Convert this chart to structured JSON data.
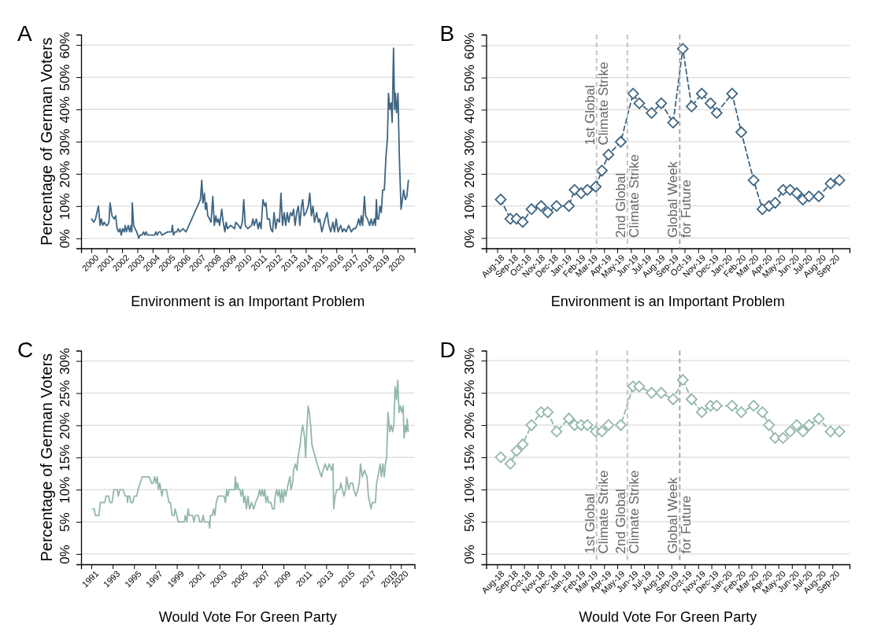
{
  "chart_data": [
    {
      "type": "line",
      "title": "A",
      "xlabel": "Environment is an Important Problem",
      "ylabel": "Percentage of German Voters",
      "grid": "y",
      "x": [
        2000.02,
        2000.15,
        2000.27,
        2000.46,
        2000.57,
        2000.65,
        2000.74,
        2000.84,
        2000.96,
        2001.04,
        2001.15,
        2001.22,
        2001.35,
        2001.49,
        2001.59,
        2001.68,
        2001.78,
        2001.87,
        2001.95,
        2002.04,
        2002.14,
        2002.21,
        2002.29,
        2002.41,
        2002.5,
        2002.59,
        2002.64,
        2002.67,
        2002.76,
        2002.86,
        2002.96,
        2003.1,
        2003.18,
        2003.3,
        2003.41,
        2003.49,
        2003.58,
        2003.66,
        2003.78,
        2004.13,
        2004.21,
        2004.3,
        2004.4,
        2004.5,
        2004.61,
        2004.98,
        2005.24,
        2005.29,
        2005.36,
        2005.46,
        2005.58,
        2005.67,
        2005.77,
        2005.98,
        2006.18,
        2007.12,
        2007.21,
        2007.28,
        2007.38,
        2007.45,
        2007.52,
        2007.6,
        2007.72,
        2007.81,
        2007.93,
        2008.03,
        2008.13,
        2008.2,
        2008.29,
        2008.37,
        2008.51,
        2008.61,
        2008.72,
        2008.8,
        2008.89,
        2009.09,
        2009.35,
        2009.43,
        2009.61,
        2009.74,
        2009.86,
        2009.95,
        2010.05,
        2010.21,
        2010.46,
        2010.55,
        2010.63,
        2010.77,
        2010.89,
        2010.98,
        2011.08,
        2011.2,
        2011.32,
        2011.4,
        2011.49,
        2011.63,
        2011.71,
        2011.83,
        2011.93,
        2012.04,
        2012.14,
        2012.28,
        2012.38,
        2012.48,
        2012.59,
        2012.69,
        2012.79,
        2012.89,
        2013.0,
        2013.1,
        2013.2,
        2013.3,
        2013.41,
        2013.51,
        2013.61,
        2013.72,
        2013.8,
        2013.89,
        2014.02,
        2014.16,
        2014.26,
        2014.37,
        2014.47,
        2014.57,
        2014.71,
        2014.83,
        2014.91,
        2015.05,
        2015.26,
        2015.39,
        2015.51,
        2015.63,
        2015.77,
        2015.87,
        2015.98,
        2016.11,
        2016.28,
        2016.39,
        2016.49,
        2016.63,
        2016.8,
        2016.97,
        2017.11,
        2017.23,
        2017.35,
        2017.45,
        2017.55,
        2017.62,
        2017.71,
        2017.83,
        2017.91,
        2018.03,
        2018.17,
        2018.27,
        2018.37,
        2018.48,
        2018.55,
        2018.61,
        2018.67,
        2018.76,
        2018.84,
        2018.93,
        2019.02,
        2019.13,
        2019.23,
        2019.33,
        2019.4,
        2019.49,
        2019.57,
        2019.64,
        2019.73,
        2019.8,
        2019.85,
        2019.93,
        2020.02,
        2020.11,
        2020.22,
        2020.31,
        2020.39,
        2020.5,
        2020.6,
        2020.7
      ],
      "series": [
        {
          "color": "#3e6582",
          "values": [
            6,
            5,
            6,
            10,
            4,
            6,
            4,
            5,
            4,
            4,
            5,
            11,
            7,
            6,
            7,
            3,
            2,
            3,
            1,
            3,
            2,
            4,
            2,
            4,
            2,
            4,
            2,
            11,
            4,
            3,
            2,
            0,
            1,
            1,
            2,
            1,
            2,
            1,
            1,
            1,
            2,
            1,
            2,
            2,
            1,
            2,
            2,
            4,
            1,
            2,
            2,
            3,
            2,
            3,
            2,
            12,
            18,
            11,
            14,
            9,
            11,
            7,
            6,
            5,
            13,
            4,
            7,
            5,
            6,
            4,
            9,
            5,
            2,
            5,
            3,
            4,
            3,
            5,
            4,
            3,
            5,
            12,
            4,
            3,
            4,
            6,
            4,
            6,
            3,
            5,
            3,
            12,
            10,
            11,
            6,
            6,
            3,
            2,
            8,
            3,
            6,
            5,
            14,
            4,
            8,
            4,
            8,
            5,
            8,
            7,
            9,
            4,
            8,
            10,
            4,
            10,
            12,
            7,
            8,
            10,
            14,
            7,
            10,
            5,
            8,
            5,
            6,
            2,
            6,
            8,
            4,
            2,
            5,
            2,
            6,
            2,
            4,
            2,
            3,
            2,
            4,
            2,
            3,
            3,
            4,
            6,
            4,
            7,
            4,
            13,
            7,
            6,
            4,
            6,
            4,
            6,
            4,
            12,
            6,
            6,
            10,
            8,
            15,
            15,
            25,
            31,
            45,
            40,
            42,
            36,
            59,
            40,
            45,
            39,
            45,
            25,
            9,
            12,
            15,
            12,
            13,
            18
          ]
        }
      ],
      "xlim": [
        1999.33,
        2021.1
      ],
      "xticks": [
        2000,
        2001,
        2002,
        2003,
        2004,
        2005,
        2006,
        2007,
        2008,
        2009,
        2010,
        2011,
        2012,
        2013,
        2014,
        2015,
        2016,
        2017,
        2018,
        2019,
        2020
      ],
      "ylim": [
        -3.1,
        63.2
      ],
      "yticks": [
        {
          "value": 0,
          "label": "0%"
        },
        {
          "value": 10,
          "label": "10%"
        },
        {
          "value": 20,
          "label": "20%"
        },
        {
          "value": 30,
          "label": "30%"
        },
        {
          "value": 40,
          "label": "40%"
        },
        {
          "value": 50,
          "label": "50%"
        },
        {
          "value": 60,
          "label": "60%"
        }
      ]
    },
    {
      "type": "line",
      "title": "B",
      "xlabel": "Environment is an Important Problem",
      "grid": "y",
      "marker": "diamond",
      "line_style": "dashed",
      "x": [
        "2018-08-09",
        "2018-08-31",
        "2018-09-14",
        "2018-09-28",
        "2018-10-18",
        "2018-11-09",
        "2018-11-24",
        "2018-12-14",
        "2019-01-11",
        "2019-01-24",
        "2019-02-08",
        "2019-02-22",
        "2019-03-13",
        "2019-03-27",
        "2019-04-11",
        "2019-05-09",
        "2019-06-06",
        "2019-06-20",
        "2019-07-18",
        "2019-08-09",
        "2019-09-05",
        "2019-09-27",
        "2019-10-17",
        "2019-11-09",
        "2019-11-29",
        "2019-12-13",
        "2020-01-17",
        "2020-02-07",
        "2020-03-06",
        "2020-03-26",
        "2020-04-10",
        "2020-04-24",
        "2020-05-12",
        "2020-05-28",
        "2020-06-12",
        "2020-06-26",
        "2020-07-10",
        "2020-08-01",
        "2020-08-28",
        "2020-09-17"
      ],
      "series": [
        {
          "color": "#3e6582",
          "values": [
            12,
            6,
            6,
            5,
            9,
            10,
            8,
            10,
            10,
            15,
            14,
            15,
            16,
            21,
            26,
            30,
            45,
            42,
            39,
            42,
            36,
            59,
            41,
            45,
            42,
            39,
            45,
            33,
            18,
            9,
            10,
            11,
            15,
            15,
            14,
            12,
            13,
            13,
            17,
            18
          ]
        }
      ],
      "xlim": [
        "2018-07-07",
        "2020-10-10"
      ],
      "xticks": [
        {
          "value": "2018-08-01",
          "label": "Aug-18"
        },
        {
          "value": "2018-09-01",
          "label": "Sep-18"
        },
        {
          "value": "2018-10-01",
          "label": "Oct-18"
        },
        {
          "value": "2018-11-01",
          "label": "Nov-18"
        },
        {
          "value": "2018-12-01",
          "label": "Dec-18"
        },
        {
          "value": "2019-01-01",
          "label": "Jan-19"
        },
        {
          "value": "2019-02-01",
          "label": "Feb-19"
        },
        {
          "value": "2019-03-01",
          "label": "Mar-19"
        },
        {
          "value": "2019-04-01",
          "label": "Apr-19"
        },
        {
          "value": "2019-05-01",
          "label": "May-19"
        },
        {
          "value": "2019-06-01",
          "label": "Jun-19"
        },
        {
          "value": "2019-07-01",
          "label": "Jul-19"
        },
        {
          "value": "2019-08-01",
          "label": "Aug-19"
        },
        {
          "value": "2019-09-01",
          "label": "Sep-19"
        },
        {
          "value": "2019-10-01",
          "label": "Oct-19"
        },
        {
          "value": "2019-11-01",
          "label": "Nov-19"
        },
        {
          "value": "2019-12-01",
          "label": "Dec-19"
        },
        {
          "value": "2020-01-01",
          "label": "Jan-20"
        },
        {
          "value": "2020-02-01",
          "label": "Feb-20"
        },
        {
          "value": "2020-03-01",
          "label": "Mar-20"
        },
        {
          "value": "2020-04-01",
          "label": "Apr-20"
        },
        {
          "value": "2020-05-01",
          "label": "May-20"
        },
        {
          "value": "2020-06-01",
          "label": "Jun-20"
        },
        {
          "value": "2020-07-01",
          "label": "Jul-20"
        },
        {
          "value": "2020-08-01",
          "label": "Aug-20"
        },
        {
          "value": "2020-09-01",
          "label": "Sep-20"
        }
      ],
      "ylim": [
        -3.2,
        63.4
      ],
      "yticks": [
        {
          "value": 0,
          "label": "0%"
        },
        {
          "value": 10,
          "label": "10%"
        },
        {
          "value": 20,
          "label": "20%"
        },
        {
          "value": 30,
          "label": "30%"
        },
        {
          "value": 40,
          "label": "40%"
        },
        {
          "value": 50,
          "label": "50%"
        },
        {
          "value": 60,
          "label": "60%"
        }
      ],
      "ref_lines": [
        {
          "axis": "x",
          "value": "2019-03-15",
          "label": "1st Global\nClimate Strike",
          "color": "#c4c4c4",
          "line_style": "dashed"
        },
        {
          "axis": "x",
          "value": "2019-05-24",
          "label": "2nd Global\nClimate Strike",
          "color": "#c4c4c4",
          "line_style": "dashed"
        },
        {
          "axis": "x",
          "value": "2019-09-20",
          "label": "Global Week\nfor Future",
          "color": "#a8a8a8",
          "line_style": "dashed"
        }
      ]
    },
    {
      "type": "line",
      "title": "C",
      "xlabel": "Would Vote For Green Party",
      "ylabel": "Percentage of German Voters",
      "grid": "y",
      "x": [
        1991.1,
        1991.27,
        1991.37,
        1991.71,
        1991.84,
        1992.25,
        1992.38,
        1992.62,
        1992.74,
        1992.94,
        1993.11,
        1993.43,
        1993.53,
        1993.68,
        1993.97,
        1994.17,
        1994.34,
        1994.39,
        1994.46,
        1994.59,
        1994.71,
        1994.88,
        1995.01,
        1995.25,
        1995.37,
        1995.57,
        1995.77,
        1996.43,
        1996.63,
        1996.8,
        1996.92,
        1997.07,
        1997.17,
        1997.29,
        1997.41,
        1997.61,
        1997.71,
        1998.03,
        1998.27,
        1998.4,
        1998.57,
        1998.76,
        1998.84,
        1999.01,
        1999.13,
        1999.7,
        1999.8,
        1999.94,
        2000.07,
        2000.16,
        2000.48,
        2000.61,
        2000.73,
        2001.02,
        2001.15,
        2001.34,
        2001.47,
        2001.59,
        2002.01,
        2002.08,
        2002.15,
        2002.33,
        2002.45,
        2002.57,
        2002.7,
        2002.87,
        2003.43,
        2003.56,
        2003.68,
        2003.8,
        2003.92,
        2004.42,
        2004.49,
        2004.59,
        2004.69,
        2004.81,
        2004.93,
        2005.03,
        2005.18,
        2005.28,
        2005.4,
        2005.52,
        2005.67,
        2005.82,
        2006.01,
        2006.21,
        2006.38,
        2006.63,
        2006.75,
        2006.87,
        2007.0,
        2007.12,
        2007.24,
        2007.36,
        2007.49,
        2007.61,
        2007.81,
        2007.98,
        2008.13,
        2008.22,
        2008.35,
        2008.47,
        2008.59,
        2008.72,
        2008.84,
        2008.96,
        2009.08,
        2009.21,
        2009.45,
        2009.6,
        2009.7,
        2009.85,
        2009.94,
        2010.12,
        2010.26,
        2010.36,
        2010.56,
        2010.68,
        2010.8,
        2010.98,
        2011.07,
        2011.17,
        2011.3,
        2011.42,
        2011.54,
        2011.66,
        2011.81,
        2011.98,
        2012.15,
        2012.35,
        2012.55,
        2012.7,
        2012.89,
        2013.09,
        2013.28,
        2013.51,
        2013.63,
        2013.7,
        2013.83,
        2014.0,
        2014.24,
        2014.37,
        2014.51,
        2014.66,
        2014.81,
        2014.91,
        2015.1,
        2015.27,
        2015.47,
        2015.59,
        2015.77,
        2015.96,
        2016.09,
        2016.21,
        2016.38,
        2016.58,
        2016.82,
        2016.95,
        2017.07,
        2017.19,
        2017.31,
        2017.61,
        2017.71,
        2017.85,
        2018.05,
        2018.17,
        2018.3,
        2018.44,
        2018.54,
        2018.66,
        2018.79,
        2018.94,
        2019.08,
        2019.21,
        2019.33,
        2019.45,
        2019.58,
        2019.7,
        2019.82,
        2019.94,
        2020.09,
        2020.21,
        2020.29,
        2020.41,
        2020.51,
        2020.58,
        2020.68
      ],
      "series": [
        {
          "color": "#93b7ae",
          "values": [
            7,
            7,
            6,
            6,
            8,
            8,
            9,
            9,
            8,
            8,
            10,
            10,
            9,
            10,
            10,
            9,
            9,
            8,
            9,
            9,
            8,
            8,
            9,
            9,
            10,
            11,
            12,
            12,
            11,
            11,
            12,
            11,
            12,
            10,
            11,
            9,
            10,
            10,
            8,
            8,
            6,
            6,
            7,
            6,
            5,
            5,
            6,
            5,
            7,
            6,
            6,
            5,
            6,
            6,
            5,
            5,
            6,
            5,
            5,
            4,
            6,
            6,
            7,
            6,
            8,
            9,
            9,
            8,
            10,
            9,
            10,
            10,
            12,
            10,
            11,
            10,
            10,
            9,
            10,
            8,
            9,
            7,
            9,
            7,
            8,
            7,
            8,
            9,
            10,
            9,
            10,
            9,
            10,
            8,
            9,
            8,
            8,
            7,
            7,
            9,
            10,
            9,
            10,
            8,
            10,
            8,
            10,
            9,
            11,
            12,
            10,
            11,
            13,
            14,
            13,
            15,
            17,
            19,
            20,
            18,
            15,
            19,
            23,
            22,
            20,
            17,
            16,
            15,
            14,
            13,
            12,
            13,
            14,
            13,
            14,
            13,
            14,
            7,
            9,
            10,
            10,
            11,
            10,
            9,
            10,
            12,
            10,
            11,
            11,
            10,
            9,
            10,
            11,
            14,
            12,
            13,
            12,
            9,
            8,
            7,
            8,
            8,
            11,
            12,
            14,
            12,
            14,
            12,
            14,
            15,
            22,
            19,
            20,
            19,
            20,
            26,
            24,
            27,
            22,
            23,
            22,
            23,
            18,
            20,
            19,
            21,
            19
          ]
        }
      ],
      "xlim": [
        1990.04,
        2021.27
      ],
      "xticks": [
        1991,
        1993,
        1995,
        1997,
        1999,
        2001,
        2003,
        2005,
        2007,
        2009,
        2011,
        2013,
        2015,
        2017,
        2019,
        2020
      ],
      "ylim": [
        -1.6,
        31.6
      ],
      "yticks": [
        {
          "value": 0,
          "label": "0%"
        },
        {
          "value": 5,
          "label": "5%"
        },
        {
          "value": 10,
          "label": "10%"
        },
        {
          "value": 15,
          "label": "15%"
        },
        {
          "value": 20,
          "label": "20%"
        },
        {
          "value": 25,
          "label": "25%"
        },
        {
          "value": 30,
          "label": "30%"
        }
      ]
    },
    {
      "type": "line",
      "title": "D",
      "xlabel": "Would Vote For Green Party",
      "grid": "y",
      "marker": "diamond",
      "line_style": "dashed",
      "x": [
        "2018-08-09",
        "2018-08-31",
        "2018-09-14",
        "2018-09-28",
        "2018-10-18",
        "2018-11-09",
        "2018-11-24",
        "2018-12-14",
        "2019-01-11",
        "2019-01-24",
        "2019-02-08",
        "2019-02-22",
        "2019-03-13",
        "2019-03-27",
        "2019-04-11",
        "2019-05-09",
        "2019-06-06",
        "2019-06-20",
        "2019-07-18",
        "2019-08-09",
        "2019-09-05",
        "2019-09-27",
        "2019-10-17",
        "2019-11-09",
        "2019-11-29",
        "2019-12-13",
        "2020-01-17",
        "2020-02-07",
        "2020-03-06",
        "2020-03-26",
        "2020-04-10",
        "2020-04-24",
        "2020-05-12",
        "2020-05-28",
        "2020-06-12",
        "2020-06-26",
        "2020-07-10",
        "2020-08-01",
        "2020-08-28",
        "2020-09-17"
      ],
      "series": [
        {
          "color": "#93b7ae",
          "values": [
            15,
            14,
            16,
            17,
            20,
            22,
            22,
            19,
            21,
            20,
            20,
            20,
            19,
            19,
            20,
            20,
            26,
            26,
            25,
            25,
            24,
            27,
            24,
            22,
            23,
            23,
            23,
            22,
            23,
            22,
            20,
            18,
            18,
            19,
            20,
            19,
            20,
            21,
            19,
            19
          ]
        }
      ],
      "xlim": [
        "2018-07-07",
        "2020-10-10"
      ],
      "xticks": [
        {
          "value": "2018-08-01",
          "label": "Aug-18"
        },
        {
          "value": "2018-09-01",
          "label": "Sep-18"
        },
        {
          "value": "2018-10-01",
          "label": "Oct-18"
        },
        {
          "value": "2018-11-01",
          "label": "Nov-18"
        },
        {
          "value": "2018-12-01",
          "label": "Dec-18"
        },
        {
          "value": "2019-01-01",
          "label": "Jan-19"
        },
        {
          "value": "2019-02-01",
          "label": "Feb-19"
        },
        {
          "value": "2019-03-01",
          "label": "Mar-19"
        },
        {
          "value": "2019-04-01",
          "label": "Apr-19"
        },
        {
          "value": "2019-05-01",
          "label": "May-19"
        },
        {
          "value": "2019-06-01",
          "label": "Jun-19"
        },
        {
          "value": "2019-07-01",
          "label": "Jul-19"
        },
        {
          "value": "2019-08-01",
          "label": "Aug-19"
        },
        {
          "value": "2019-09-01",
          "label": "Sep-19"
        },
        {
          "value": "2019-10-01",
          "label": "Oct-19"
        },
        {
          "value": "2019-11-01",
          "label": "Nov-19"
        },
        {
          "value": "2019-12-01",
          "label": "Dec-19"
        },
        {
          "value": "2020-01-01",
          "label": "Jan-20"
        },
        {
          "value": "2020-02-01",
          "label": "Feb-20"
        },
        {
          "value": "2020-03-01",
          "label": "Mar-20"
        },
        {
          "value": "2020-04-01",
          "label": "Apr-20"
        },
        {
          "value": "2020-05-01",
          "label": "May-20"
        },
        {
          "value": "2020-06-01",
          "label": "Jun-20"
        },
        {
          "value": "2020-07-01",
          "label": "Jul-20"
        },
        {
          "value": "2020-08-01",
          "label": "Aug-20"
        },
        {
          "value": "2020-09-01",
          "label": "Sep-20"
        }
      ],
      "ylim": [
        -1.6,
        31.55
      ],
      "yticks": [
        {
          "value": 0,
          "label": "0%"
        },
        {
          "value": 5,
          "label": "5%"
        },
        {
          "value": 10,
          "label": "10%"
        },
        {
          "value": 15,
          "label": "15%"
        },
        {
          "value": 20,
          "label": "20%"
        },
        {
          "value": 25,
          "label": "25%"
        },
        {
          "value": 30,
          "label": "30%"
        }
      ],
      "ref_lines": [
        {
          "axis": "x",
          "value": "2019-03-15",
          "label": "1st Global\nClimate Strike",
          "color": "#c4c4c4",
          "line_style": "dashed"
        },
        {
          "axis": "x",
          "value": "2019-05-24",
          "label": "2nd Global\nClimate Strike",
          "color": "#c4c4c4",
          "line_style": "dashed"
        },
        {
          "axis": "x",
          "value": "2019-09-20",
          "label": "Global Week\nfor Future",
          "color": "#a8a8a8",
          "line_style": "dashed"
        }
      ]
    }
  ]
}
